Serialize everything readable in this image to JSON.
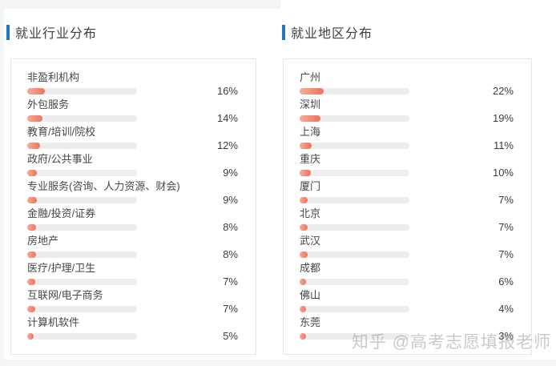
{
  "page": {
    "watermark": "知乎 @高考志愿填报老师"
  },
  "colors": {
    "accent_blue": "#2176bd",
    "bar_fill_start": "#f7ab97",
    "bar_fill_end": "#ec7360",
    "bar_track": "#ededed",
    "watermark_gray": "#969696"
  },
  "chart_data": [
    {
      "type": "bar",
      "orientation": "horizontal",
      "title": "就业行业分布",
      "unit": "%",
      "xlim": [
        0,
        100
      ],
      "grid": false,
      "legend": false,
      "categories": [
        "非盈利机构",
        "外包服务",
        "教育/培训/院校",
        "政府/公共事业",
        "专业服务(咨询、人力资源、财会)",
        "金融/投资/证券",
        "房地产",
        "医疗/护理/卫生",
        "互联网/电子商务",
        "计算机软件"
      ],
      "values": [
        16,
        14,
        12,
        9,
        9,
        8,
        8,
        7,
        7,
        5
      ],
      "value_labels": [
        "16%",
        "14%",
        "12%",
        "9%",
        "9%",
        "8%",
        "8%",
        "7%",
        "7%",
        "5%"
      ]
    },
    {
      "type": "bar",
      "orientation": "horizontal",
      "title": "就业地区分布",
      "unit": "%",
      "xlim": [
        0,
        100
      ],
      "grid": false,
      "legend": false,
      "categories": [
        "广州",
        "深圳",
        "上海",
        "重庆",
        "厦门",
        "北京",
        "武汉",
        "成都",
        "佛山",
        "东莞"
      ],
      "values": [
        22,
        19,
        11,
        10,
        7,
        7,
        7,
        6,
        4,
        3
      ],
      "value_labels": [
        "22%",
        "19%",
        "11%",
        "10%",
        "7%",
        "7%",
        "7%",
        "6%",
        "4%",
        "3%"
      ]
    }
  ]
}
